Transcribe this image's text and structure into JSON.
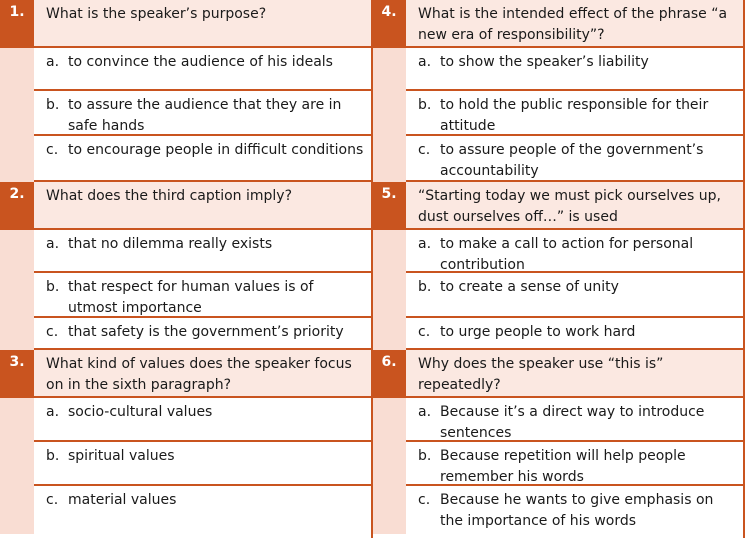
{
  "questions": [
    {
      "number": "1.",
      "text": "What is the speaker’s purpose?",
      "options": [
        {
          "letter": "a.",
          "text": "to convince the audience of his ideals"
        },
        {
          "letter": "b.",
          "text": "to assure the audience that they are in safe hands"
        },
        {
          "letter": "c.",
          "text": "to encourage people in difficult conditions"
        }
      ]
    },
    {
      "number": "2.",
      "text": "What does the third caption imply?",
      "options": [
        {
          "letter": "a.",
          "text": "that no dilemma really exists"
        },
        {
          "letter": "b.",
          "text": "that respect for human values is of utmost importance"
        },
        {
          "letter": "c.",
          "text": "that safety is the government’s priority"
        }
      ]
    },
    {
      "number": "3.",
      "text": "What kind of values does the speaker focus on in the sixth paragraph?",
      "options": [
        {
          "letter": "a.",
          "text": "socio-cultural values"
        },
        {
          "letter": "b.",
          "text": "spiritual values"
        },
        {
          "letter": "c.",
          "text": "material values"
        }
      ]
    },
    {
      "number": "4.",
      "text": "What is the intended effect of the phrase “a new era of responsibility”?",
      "options": [
        {
          "letter": "a.",
          "text": "to show the speaker’s liability"
        },
        {
          "letter": "b.",
          "text": "to hold the public responsible for their attitude"
        },
        {
          "letter": "c.",
          "text": "to assure people of the government’s accountability"
        }
      ]
    },
    {
      "number": "5.",
      "text": "“Starting today we must pick ourselves up, dust ourselves off…” is used",
      "options": [
        {
          "letter": "a.",
          "text": "to make a call to action for personal contribution"
        },
        {
          "letter": "b.",
          "text": "to create a sense of unity"
        },
        {
          "letter": "c.",
          "text": "to urge people to work hard"
        }
      ]
    },
    {
      "number": "6.",
      "text": "Why does the speaker use “this is” repeatedly?",
      "options": [
        {
          "letter": "a.",
          "text": "Because it’s a direct way to introduce sentences"
        },
        {
          "letter": "b.",
          "text": "Because repetition will help people remember his words"
        },
        {
          "letter": "c.",
          "text": "Because he wants to give emphasis on the importance of his words"
        }
      ]
    }
  ],
  "colors": {
    "accent": "#c9541f",
    "question_bg": "#fbe8e1",
    "number_column_bg": "#f9ddd3"
  }
}
